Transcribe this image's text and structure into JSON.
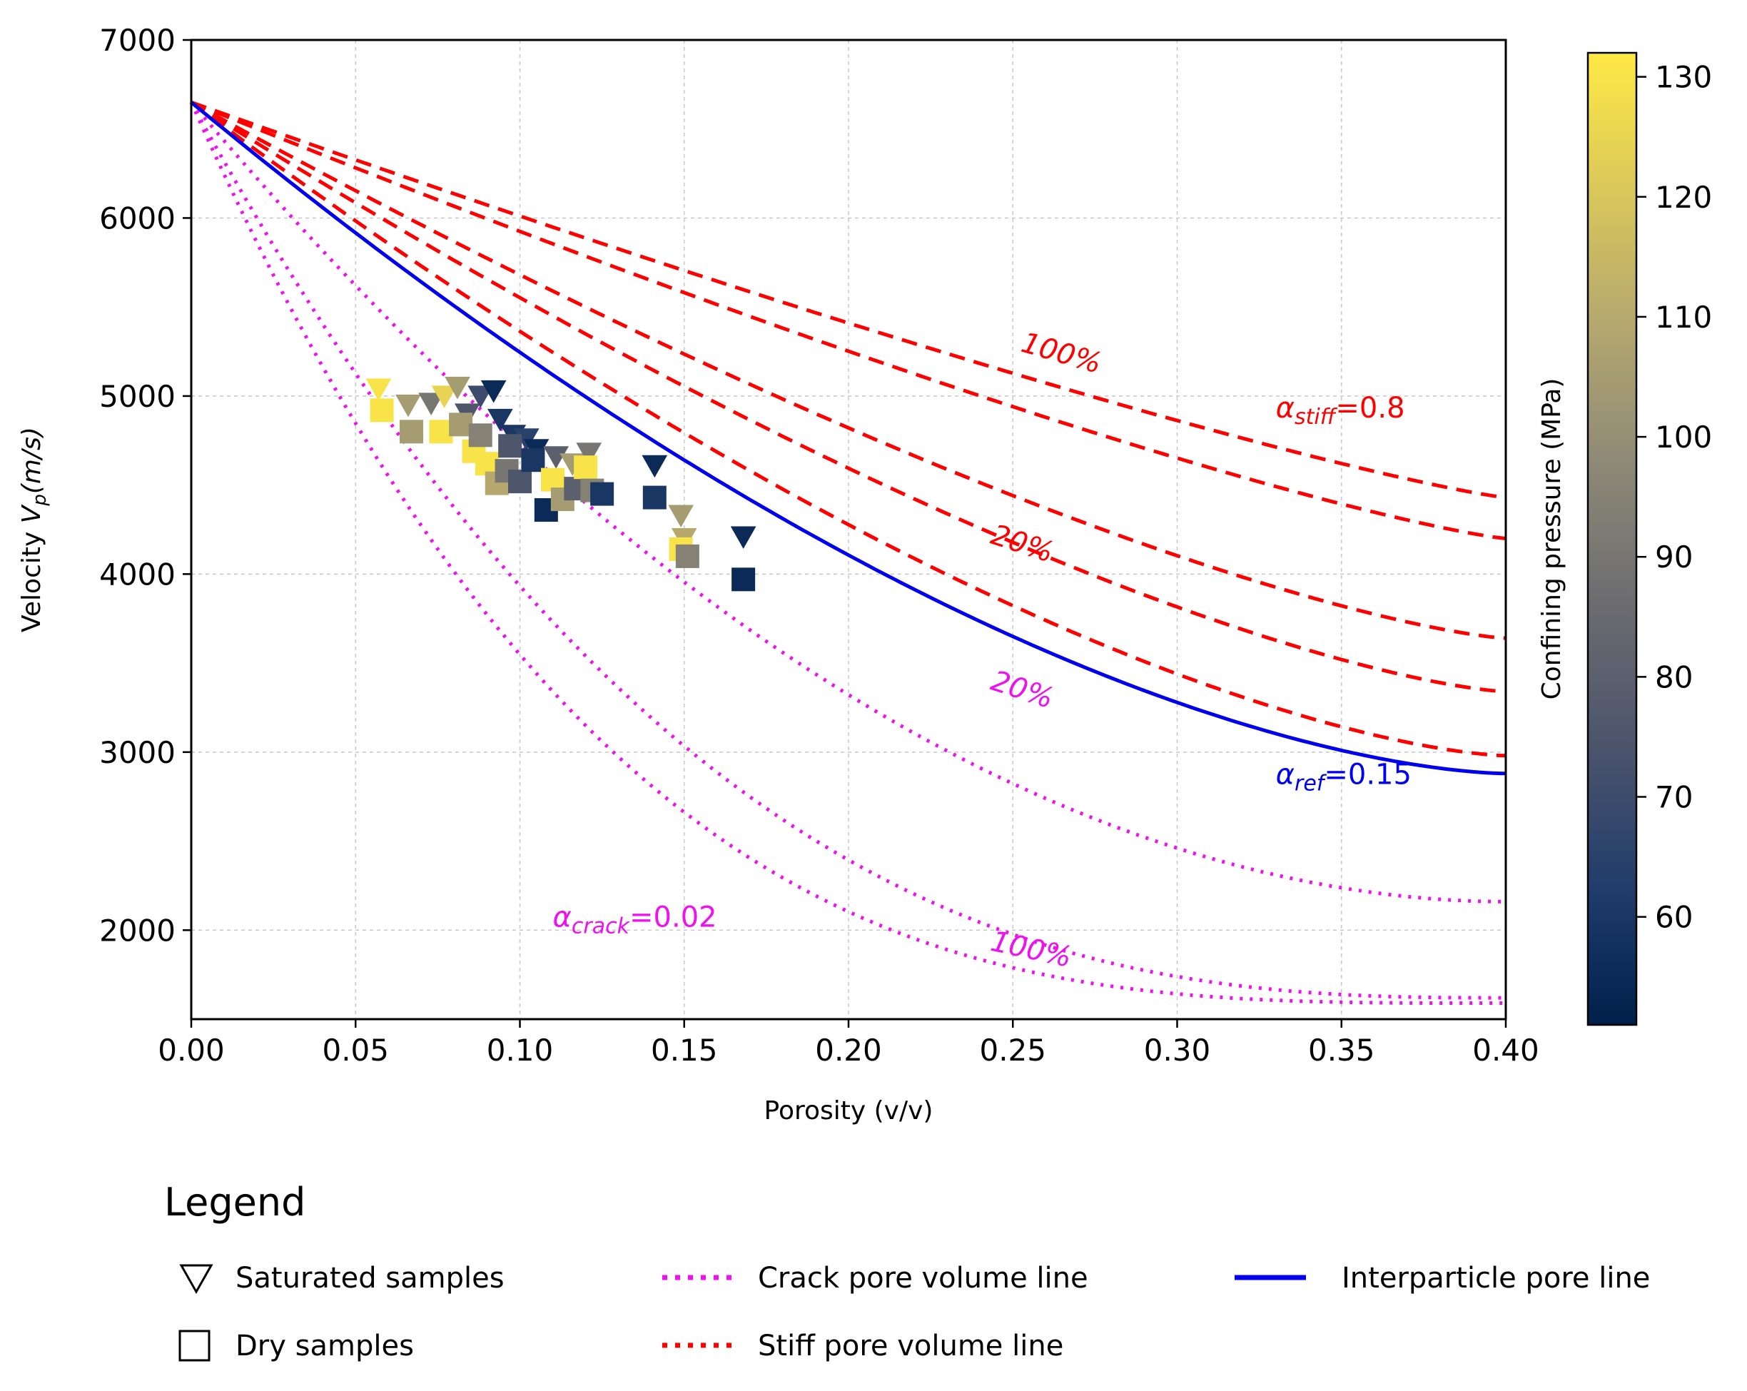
{
  "chart_data": {
    "type": "scatter",
    "xlabel": "Porosity (v/v)",
    "ylabel_main": "Velocity ",
    "ylabel_var": "V",
    "ylabel_sub": "p",
    "ylabel_unit": "(m/s)",
    "xlim": [
      0.0,
      0.4
    ],
    "ylim": [
      1500,
      7000
    ],
    "grid": true,
    "x_ticks": [
      0.0,
      0.05,
      0.1,
      0.15,
      0.2,
      0.25,
      0.3,
      0.35,
      0.4
    ],
    "x_tick_labels": [
      "0.00",
      "0.05",
      "0.10",
      "0.15",
      "0.20",
      "0.25",
      "0.30",
      "0.35",
      "0.40"
    ],
    "y_ticks": [
      2000,
      3000,
      4000,
      5000,
      6000,
      7000
    ],
    "y_tick_labels": [
      "2000",
      "3000",
      "4000",
      "5000",
      "6000",
      "7000"
    ],
    "colorbar": {
      "label": "Confining pressure (MPa)",
      "range": [
        51,
        132
      ],
      "ticks": [
        60,
        70,
        80,
        90,
        100,
        110,
        120,
        130
      ],
      "tick_labels": [
        "60",
        "70",
        "80",
        "90",
        "100",
        "110",
        "120",
        "130"
      ],
      "colormap": [
        "#00204c",
        "#213d6b",
        "#4c546c",
        "#6b6b70",
        "#8c8876",
        "#b3a670",
        "#d9c75b",
        "#ffe945"
      ]
    },
    "lines": {
      "stiff_color": "#ff0000",
      "crack_color": "#ee10ee",
      "interparticle_color": "#0000ee",
      "v0": 6650,
      "stiff_end_values": [
        4430,
        4200,
        3640,
        3340,
        2980
      ],
      "crack_end_values": [
        2160,
        1620,
        1590
      ],
      "interparticle_end_value": 2880
    },
    "series": [
      {
        "name": "Saturated samples",
        "marker": "triangle-down",
        "points": [
          {
            "x": 0.057,
            "y": 5040,
            "p": 130
          },
          {
            "x": 0.066,
            "y": 4950,
            "p": 105
          },
          {
            "x": 0.073,
            "y": 4960,
            "p": 90
          },
          {
            "x": 0.077,
            "y": 5000,
            "p": 125
          },
          {
            "x": 0.081,
            "y": 5050,
            "p": 105
          },
          {
            "x": 0.084,
            "y": 4900,
            "p": 75
          },
          {
            "x": 0.088,
            "y": 5000,
            "p": 70
          },
          {
            "x": 0.092,
            "y": 5030,
            "p": 55
          },
          {
            "x": 0.094,
            "y": 4870,
            "p": 60
          },
          {
            "x": 0.098,
            "y": 4780,
            "p": 60
          },
          {
            "x": 0.102,
            "y": 4760,
            "p": 65
          },
          {
            "x": 0.105,
            "y": 4700,
            "p": 55
          },
          {
            "x": 0.111,
            "y": 4660,
            "p": 80
          },
          {
            "x": 0.116,
            "y": 4620,
            "p": 105
          },
          {
            "x": 0.121,
            "y": 4680,
            "p": 90
          },
          {
            "x": 0.141,
            "y": 4610,
            "p": 55
          },
          {
            "x": 0.149,
            "y": 4330,
            "p": 105
          },
          {
            "x": 0.15,
            "y": 4200,
            "p": 110
          },
          {
            "x": 0.168,
            "y": 4210,
            "p": 55
          }
        ]
      },
      {
        "name": "Dry samples",
        "marker": "square",
        "points": [
          {
            "x": 0.058,
            "y": 4920,
            "p": 130
          },
          {
            "x": 0.067,
            "y": 4800,
            "p": 105
          },
          {
            "x": 0.076,
            "y": 4800,
            "p": 130
          },
          {
            "x": 0.082,
            "y": 4840,
            "p": 105
          },
          {
            "x": 0.086,
            "y": 4690,
            "p": 130
          },
          {
            "x": 0.088,
            "y": 4780,
            "p": 95
          },
          {
            "x": 0.09,
            "y": 4620,
            "p": 130
          },
          {
            "x": 0.093,
            "y": 4510,
            "p": 110
          },
          {
            "x": 0.096,
            "y": 4580,
            "p": 90
          },
          {
            "x": 0.097,
            "y": 4720,
            "p": 75
          },
          {
            "x": 0.1,
            "y": 4520,
            "p": 75
          },
          {
            "x": 0.104,
            "y": 4640,
            "p": 60
          },
          {
            "x": 0.108,
            "y": 4360,
            "p": 55
          },
          {
            "x": 0.11,
            "y": 4530,
            "p": 130
          },
          {
            "x": 0.113,
            "y": 4420,
            "p": 105
          },
          {
            "x": 0.117,
            "y": 4480,
            "p": 80
          },
          {
            "x": 0.12,
            "y": 4600,
            "p": 130
          },
          {
            "x": 0.122,
            "y": 4470,
            "p": 95
          },
          {
            "x": 0.125,
            "y": 4450,
            "p": 60
          },
          {
            "x": 0.141,
            "y": 4430,
            "p": 60
          },
          {
            "x": 0.149,
            "y": 4140,
            "p": 130
          },
          {
            "x": 0.151,
            "y": 4100,
            "p": 95
          },
          {
            "x": 0.168,
            "y": 3970,
            "p": 55
          }
        ]
      }
    ],
    "annotations": [
      {
        "name": "stiff-100-label",
        "text": "100%",
        "x": 0.264,
        "y": 5190,
        "angle": 16,
        "color": "#ff0000"
      },
      {
        "name": "stiff-20-label",
        "text": "20%",
        "x": 0.252,
        "y": 4120,
        "angle": 18,
        "color": "#ff0000"
      },
      {
        "name": "crack-20-label",
        "text": "20%",
        "x": 0.252,
        "y": 3300,
        "angle": 18,
        "color": "#ee10ee"
      },
      {
        "name": "crack-100-label",
        "text": "100%",
        "x": 0.255,
        "y": 1840,
        "angle": 12,
        "color": "#ee10ee"
      }
    ],
    "alpha_labels": [
      {
        "name": "alpha-stiff-label",
        "symbol": "α",
        "sub": "stiff",
        "value": "=0.8",
        "x": 0.33,
        "y": 4880,
        "color": "#ff0000"
      },
      {
        "name": "alpha-ref-label",
        "symbol": "α",
        "sub": "ref",
        "value": "=0.15",
        "x": 0.33,
        "y": 2820,
        "color": "#0000ee"
      },
      {
        "name": "alpha-crack-label",
        "symbol": "α",
        "sub": "crack",
        "value": "=0.02",
        "x": 0.11,
        "y": 2020,
        "color": "#ee10ee"
      }
    ]
  },
  "legend": {
    "title": "Legend",
    "saturated": "Saturated samples",
    "dry": "Dry samples",
    "crack": "Crack pore volume line",
    "stiff": "Stiff pore volume line",
    "interparticle": "Interparticle pore line"
  }
}
